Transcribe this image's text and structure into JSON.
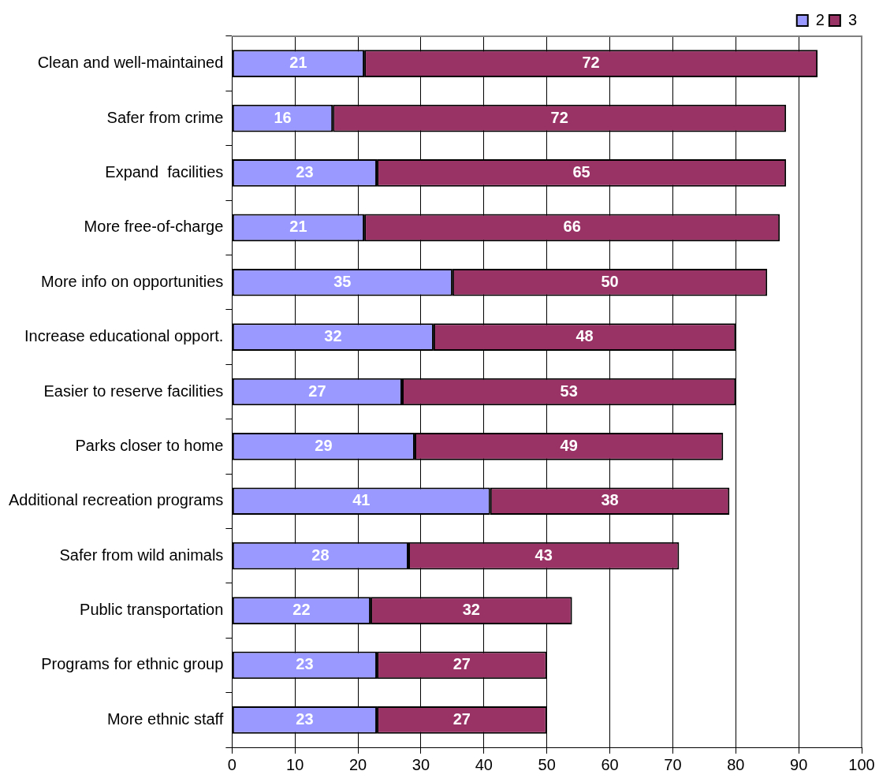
{
  "chart_data": {
    "type": "bar",
    "orientation": "horizontal",
    "stacked": true,
    "data_labels": true,
    "grid": "x",
    "legend": "top right",
    "categories": [
      "Clean and well-maintained",
      "Safer from crime",
      "Expand  facilities",
      "More free-of-charge",
      "More info on opportunities",
      "Increase educational opport.",
      "Easier to reserve facilities",
      "Parks closer to home",
      "Additional recreation programs",
      "Safer from wild animals",
      "Public transportation",
      "Programs for ethnic group",
      "More ethnic staff"
    ],
    "series": [
      {
        "name": "2",
        "color": "#9999ff",
        "values": [
          21,
          16,
          23,
          21,
          35,
          32,
          27,
          29,
          41,
          28,
          22,
          23,
          23
        ]
      },
      {
        "name": "3",
        "color": "#993366",
        "values": [
          72,
          72,
          65,
          66,
          50,
          48,
          53,
          49,
          38,
          43,
          32,
          27,
          27
        ]
      }
    ],
    "xlim": [
      0,
      100
    ],
    "xticks": [
      0,
      10,
      20,
      30,
      40,
      50,
      60,
      70,
      80,
      90,
      100
    ]
  }
}
